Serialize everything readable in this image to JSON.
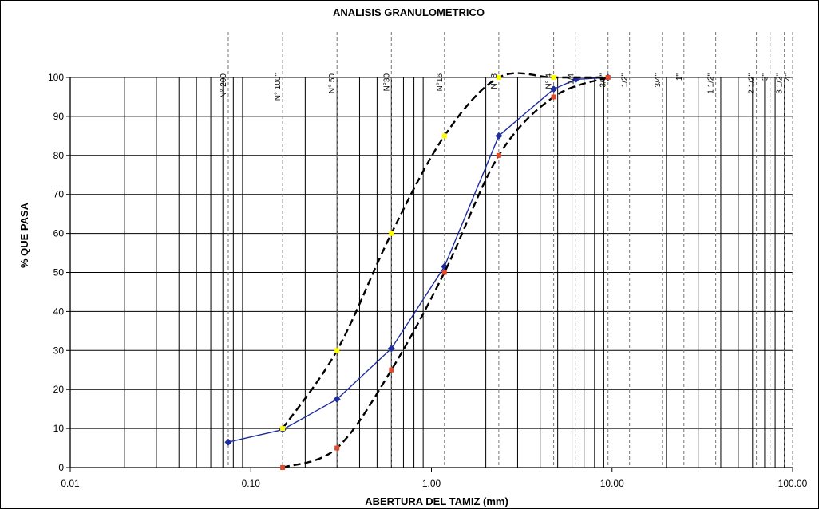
{
  "chart_data": {
    "type": "line",
    "title": "ANALISIS GRANULOMETRICO",
    "xlabel": "ABERTURA DEL TAMIZ (mm)",
    "ylabel": "% QUE PASA",
    "x_scale": "log",
    "xlim": [
      0.01,
      100
    ],
    "ylim": [
      0,
      100
    ],
    "grid": true,
    "x_tick_labels": [
      "0.01",
      "0.10",
      "1.00",
      "10.00",
      "100.00"
    ],
    "y_tick_labels": [
      "0",
      "10",
      "20",
      "30",
      "40",
      "50",
      "60",
      "70",
      "80",
      "90",
      "100"
    ],
    "sieves": [
      {
        "label": "N° 200",
        "size": 0.075
      },
      {
        "label": "N° 100\"",
        "size": 0.15
      },
      {
        "label": "N° 50",
        "size": 0.3
      },
      {
        "label": "N°30",
        "size": 0.6
      },
      {
        "label": "N°16",
        "size": 1.18
      },
      {
        "label": "N° 8",
        "size": 2.36
      },
      {
        "label": "N° 4",
        "size": 4.75
      },
      {
        "label": "1/4",
        "size": 6.3
      },
      {
        "label": "3/8\"",
        "size": 9.5
      },
      {
        "label": "1/2\"",
        "size": 12.5
      },
      {
        "label": "3/4\"",
        "size": 19
      },
      {
        "label": "1\"",
        "size": 25
      },
      {
        "label": "1 1/2\"",
        "size": 37.5
      },
      {
        "label": "2 1/2\"",
        "size": 63
      },
      {
        "label": "3\"",
        "size": 75
      },
      {
        "label": "3 1/2\"",
        "size": 90
      },
      {
        "label": "4\"",
        "size": 100
      }
    ],
    "series": [
      {
        "style": "solid-blue",
        "color": "#1f2e9c",
        "marker": "diamond",
        "x": [
          0.075,
          0.15,
          0.3,
          0.6,
          1.18,
          2.36,
          4.75,
          6.3,
          9.5
        ],
        "y": [
          6.5,
          9.7,
          17.5,
          30.5,
          51.5,
          85,
          97,
          99.5,
          100
        ]
      },
      {
        "style": "dashed-upper",
        "color": "#000000",
        "marker_color": "#ffff00",
        "x": [
          0.15,
          0.3,
          0.6,
          1.18,
          2.36,
          4.75,
          9.5
        ],
        "y": [
          10,
          30,
          60,
          85,
          100,
          100,
          100
        ]
      },
      {
        "style": "dashed-lower",
        "color": "#000000",
        "marker_color": "#e04a2a",
        "x": [
          0.15,
          0.3,
          0.6,
          1.18,
          2.36,
          4.75,
          9.5
        ],
        "y": [
          0,
          5,
          25,
          50,
          80,
          95,
          100
        ]
      }
    ]
  }
}
